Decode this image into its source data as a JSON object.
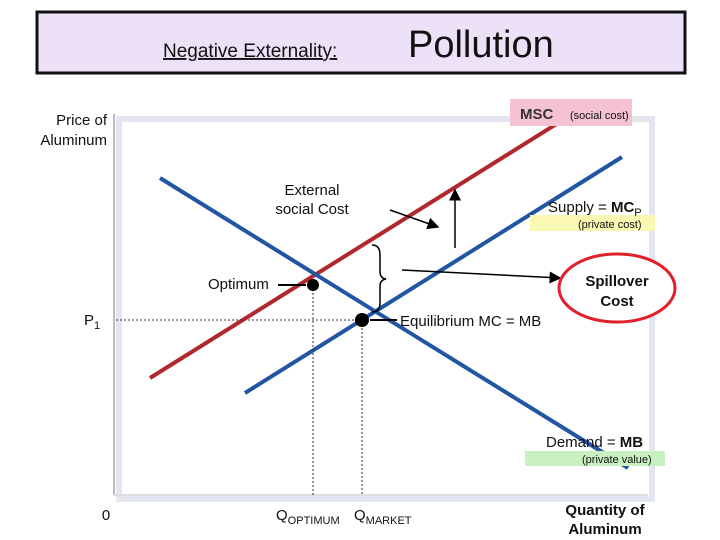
{
  "title": {
    "lead": "Negative Externality:",
    "main": "Pollution"
  },
  "y_axis_label": [
    "Price of",
    "Aluminum"
  ],
  "x_axis_label": [
    "Quantity of",
    "Aluminum"
  ],
  "origin": "0",
  "msc": {
    "label": "MSC",
    "note": "(social cost)"
  },
  "external_cost": [
    "External",
    "social Cost"
  ],
  "supply": {
    "label": "Supply = ",
    "bold": "MC",
    "sub": "P",
    "note": "(private cost)"
  },
  "demand": {
    "label": "Demand = ",
    "bold": "MB",
    "note": "(private value)"
  },
  "optimum": "Optimum",
  "price": {
    "label": "P",
    "sub": "1"
  },
  "equilibrium": "Equilibrium  MC = MB",
  "spillover": [
    "Spillover",
    "Cost"
  ],
  "q_optimum": {
    "label": "Q",
    "sub": "OPTIMUM"
  },
  "q_market": {
    "label": "Q",
    "sub": "MARKET"
  }
}
